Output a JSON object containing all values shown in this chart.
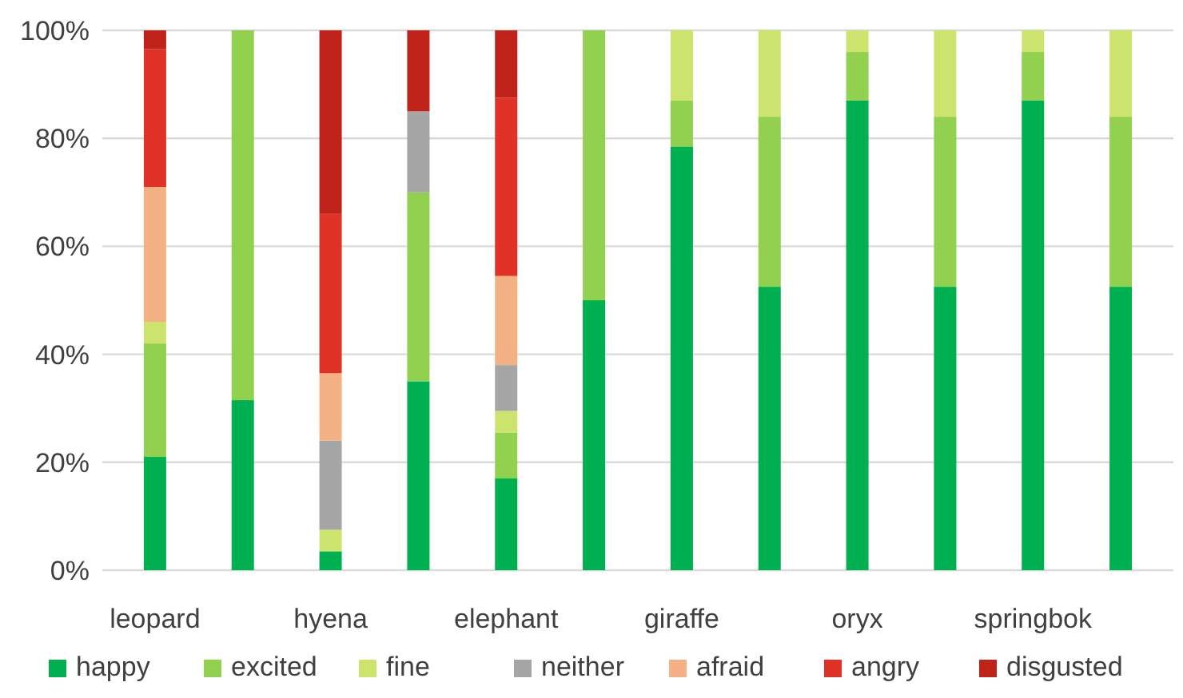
{
  "chart_data": {
    "type": "bar",
    "stacked": true,
    "categories": [
      "leopard",
      null,
      "hyena",
      null,
      "elephant",
      null,
      "giraffe",
      null,
      "oryx",
      null,
      "springbok",
      null
    ],
    "series": [
      {
        "name": "happy",
        "color": "#00b050",
        "values": [
          21,
          31.5,
          3.5,
          35,
          17,
          50,
          78.5,
          52.5,
          87,
          52.5,
          87,
          52.5
        ]
      },
      {
        "name": "excited",
        "color": "#92d050",
        "values": [
          21,
          68.5,
          0,
          35,
          8.5,
          50,
          8.5,
          31.5,
          9,
          31.5,
          9,
          31.5
        ]
      },
      {
        "name": "fine",
        "color": "#cce46e",
        "values": [
          4,
          0,
          4,
          0,
          4,
          0,
          13,
          16,
          4,
          16,
          4,
          16
        ]
      },
      {
        "name": "neither",
        "color": "#a6a6a6",
        "values": [
          0,
          0,
          16.5,
          15,
          8.5,
          0,
          0,
          0,
          0,
          0,
          0,
          0
        ]
      },
      {
        "name": "afraid",
        "color": "#f4b183",
        "values": [
          25,
          0,
          12.5,
          0,
          16.5,
          0,
          0,
          0,
          0,
          0,
          0,
          0
        ]
      },
      {
        "name": "angry",
        "color": "#e03226",
        "values": [
          25.5,
          0,
          29.5,
          0,
          33,
          0,
          0,
          0,
          0,
          0,
          0,
          0
        ]
      },
      {
        "name": "disgusted",
        "color": "#c0231a",
        "values": [
          3.5,
          0,
          34,
          15,
          12.5,
          0,
          0,
          0,
          0,
          0,
          0,
          0
        ]
      }
    ],
    "ylim": [
      0,
      100
    ],
    "yticks": [
      {
        "value": 0,
        "label": "0%"
      },
      {
        "value": 20,
        "label": "20%"
      },
      {
        "value": 40,
        "label": "40%"
      },
      {
        "value": 60,
        "label": "60%"
      },
      {
        "value": 80,
        "label": "80%"
      },
      {
        "value": 100,
        "label": "100%"
      }
    ],
    "grid": "y",
    "legend": "bottom"
  }
}
